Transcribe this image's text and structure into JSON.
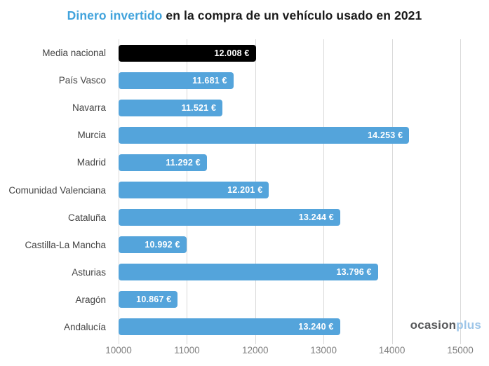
{
  "title": {
    "highlight": "Dinero invertido",
    "rest": " en la compra de un vehículo usado en 2021"
  },
  "watermark": {
    "part1": "ocasion",
    "part2": "plus"
  },
  "colors": {
    "bar": "#54a4db",
    "bar_highlight": "#000000",
    "title_highlight": "#41a3dc",
    "grid": "#d9d9d9",
    "category_label": "#444444",
    "tick_label": "#7f7f7f",
    "value_label": "#ffffff",
    "watermark_dark": "#57585a",
    "watermark_light": "#9dc5e8"
  },
  "chart_data": {
    "type": "bar",
    "orientation": "horizontal",
    "title": "Dinero invertido en la compra de un vehículo usado en 2021",
    "xlabel": "",
    "ylabel": "",
    "xlim": [
      10000,
      15000
    ],
    "x_ticks": [
      "10000",
      "11000",
      "12000",
      "13000",
      "14000",
      "15000"
    ],
    "grid": true,
    "legend": false,
    "highlight_index": 0,
    "categories": [
      "Media nacional",
      "País Vasco",
      "Navarra",
      "Murcia",
      "Madrid",
      "Comunidad Valenciana",
      "Cataluña",
      "Castilla-La Mancha",
      "Asturias",
      "Aragón",
      "Andalucía"
    ],
    "values": [
      12008,
      11681,
      11521,
      14253,
      11292,
      12201,
      13244,
      10992,
      13796,
      10867,
      13240
    ],
    "value_labels": [
      "12.008 €",
      "11.681 €",
      "11.521 €",
      "14.253 €",
      "11.292 €",
      "12.201 €",
      "13.244 €",
      "10.992 €",
      "13.796 €",
      "10.867 €",
      "13.240 €"
    ]
  }
}
